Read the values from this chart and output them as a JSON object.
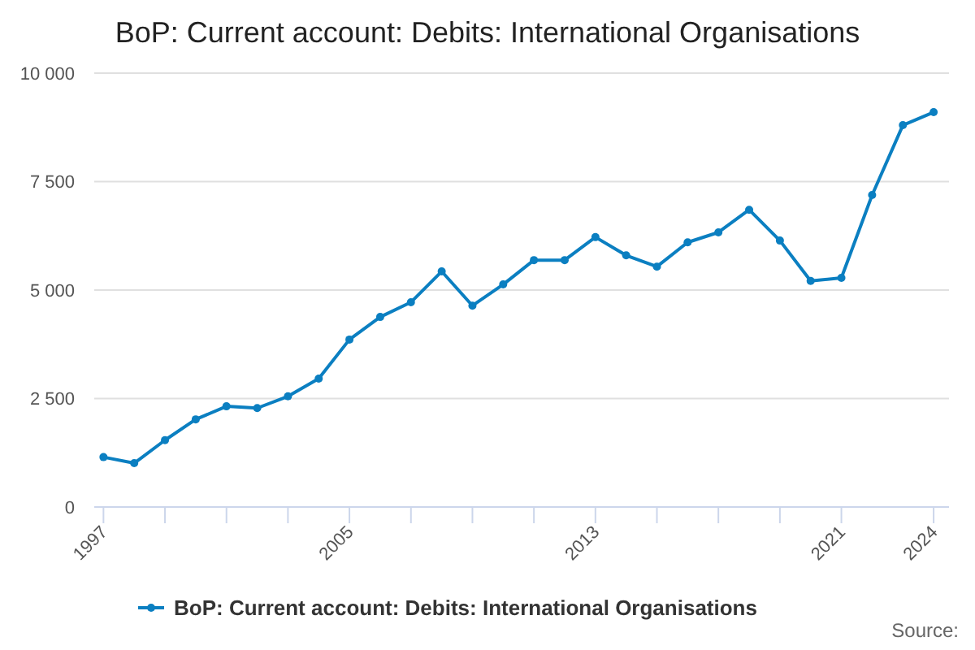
{
  "chart_data": {
    "type": "line",
    "title": "BoP: Current account: Debits: International Organisations",
    "x": [
      1997,
      1998,
      1999,
      2000,
      2001,
      2002,
      2003,
      2004,
      2005,
      2006,
      2007,
      2008,
      2009,
      2010,
      2011,
      2012,
      2013,
      2014,
      2015,
      2016,
      2017,
      2018,
      2019,
      2020,
      2021,
      2022,
      2023,
      2024
    ],
    "series": [
      {
        "name": "BoP: Current account: Debits: International Organisations",
        "color": "#0b7fc1",
        "values": [
          1150,
          1010,
          1540,
          2020,
          2320,
          2280,
          2550,
          2960,
          3860,
          4380,
          4720,
          5430,
          4640,
          5130,
          5690,
          5690,
          6220,
          5800,
          5540,
          6100,
          6330,
          6850,
          6140,
          5210,
          5280,
          7190,
          8800,
          9100
        ]
      }
    ],
    "xlim": [
      1996.7,
      2024.5
    ],
    "xticks": [
      1997,
      {
        "value": 1999,
        "label": null
      },
      {
        "value": 2001,
        "label": null
      },
      {
        "value": 2003,
        "label": null
      },
      2005,
      {
        "value": 2007,
        "label": null
      },
      {
        "value": 2009,
        "label": null
      },
      {
        "value": 2011,
        "label": null
      },
      2013,
      {
        "value": 2015,
        "label": null
      },
      {
        "value": 2017,
        "label": null
      },
      {
        "value": 2019,
        "label": null
      },
      2021,
      2024
    ],
    "ylim": [
      0,
      10000
    ],
    "yticks": [
      0,
      {
        "value": 2500,
        "label": "2 500"
      },
      {
        "value": 5000,
        "label": "5 000"
      },
      {
        "value": 7500,
        "label": "7 500"
      },
      {
        "value": 10000,
        "label": "10 000"
      }
    ],
    "grid": "y",
    "legend": "bottom",
    "marker": "circle",
    "line_style": "solid",
    "annotations": [
      "Source:"
    ]
  }
}
